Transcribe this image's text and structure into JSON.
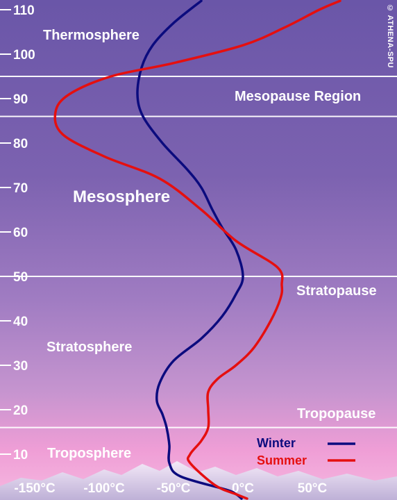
{
  "chart_data": {
    "type": "line",
    "xlim": [
      -175,
      75
    ],
    "ylim": [
      0,
      112
    ],
    "y_ticks": [
      "110",
      "100",
      "90",
      "80",
      "70",
      "60",
      "50",
      "40",
      "30",
      "20",
      "10"
    ],
    "y_tick_values": [
      110,
      100,
      90,
      80,
      70,
      60,
      50,
      40,
      30,
      20,
      10
    ],
    "x_ticks": [
      "-150°C",
      "-100°C",
      "-50°C",
      "0°C",
      "50°C"
    ],
    "x_tick_values": [
      -150,
      -100,
      -50,
      0,
      50
    ],
    "boundaries": [
      95,
      86,
      50,
      16
    ],
    "series": [
      {
        "name": "Winter",
        "color": "#0b0b7e",
        "points": [
          [
            -1,
            0
          ],
          [
            -5,
            1
          ],
          [
            -12,
            2
          ],
          [
            -45,
            5
          ],
          [
            -53,
            8
          ],
          [
            -53,
            12
          ],
          [
            -55,
            16
          ],
          [
            -58,
            19
          ],
          [
            -62,
            22
          ],
          [
            -60,
            26
          ],
          [
            -50,
            31
          ],
          [
            -30,
            36
          ],
          [
            -15,
            41
          ],
          [
            -5,
            46
          ],
          [
            0,
            50
          ],
          [
            -5,
            56
          ],
          [
            -15,
            61
          ],
          [
            -22,
            65
          ],
          [
            -30,
            70
          ],
          [
            -40,
            74
          ],
          [
            -58,
            80
          ],
          [
            -72,
            86
          ],
          [
            -76,
            91
          ],
          [
            -73,
            97
          ],
          [
            -65,
            102
          ],
          [
            -50,
            107
          ],
          [
            -30,
            112
          ]
        ]
      },
      {
        "name": "Summer",
        "color": "#e50f0f",
        "points": [
          [
            3,
            0
          ],
          [
            -5,
            1
          ],
          [
            -20,
            3
          ],
          [
            -38,
            8
          ],
          [
            -38,
            10
          ],
          [
            -30,
            13
          ],
          [
            -25,
            16
          ],
          [
            -25,
            20
          ],
          [
            -25,
            24
          ],
          [
            -18,
            27
          ],
          [
            -5,
            30
          ],
          [
            8,
            34
          ],
          [
            20,
            40
          ],
          [
            27,
            45
          ],
          [
            28,
            48
          ],
          [
            25,
            52
          ],
          [
            -5,
            58
          ],
          [
            -30,
            65
          ],
          [
            -60,
            72
          ],
          [
            -100,
            77
          ],
          [
            -130,
            82
          ],
          [
            -135,
            87
          ],
          [
            -125,
            91
          ],
          [
            -95,
            95
          ],
          [
            -50,
            98
          ],
          [
            0,
            102
          ],
          [
            30,
            106
          ],
          [
            55,
            110
          ],
          [
            70,
            112
          ]
        ]
      }
    ],
    "annotations": [
      "Thermosphere",
      "Mesopause Region",
      "Mesosphere",
      "Stratopause",
      "Stratosphere",
      "Tropopause",
      "Troposphere"
    ]
  },
  "labels": {
    "thermosphere": "Thermosphere",
    "mesopause": "Mesopause Region",
    "mesosphere": "Mesosphere",
    "stratopause": "Stratopause",
    "stratosphere": "Stratosphere",
    "tropopause": "Tropopause",
    "troposphere": "Troposphere"
  },
  "legend": {
    "winter": "Winter",
    "summer": "Summer",
    "winter_color": "#0b0b7e",
    "summer_color": "#e50f0f"
  },
  "copyright": "© ATHENA-SPU"
}
